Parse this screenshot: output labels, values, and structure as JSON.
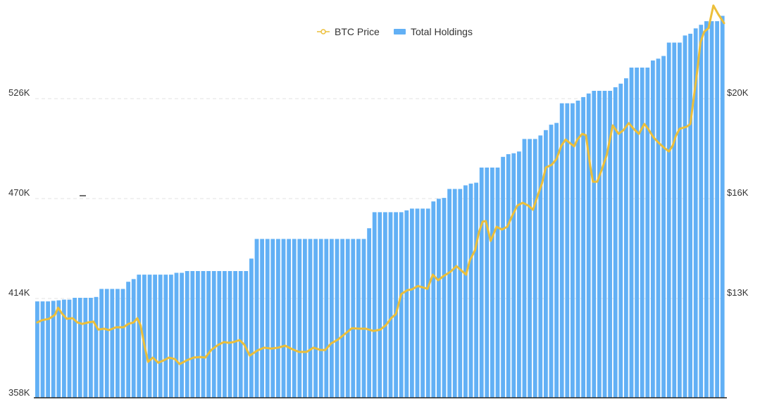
{
  "chart_data": {
    "type": "bar+line",
    "title": "",
    "legend": {
      "placement": "top-center",
      "items": [
        {
          "name": "BTC Price",
          "kind": "line",
          "color": "#ecbf3a"
        },
        {
          "name": "Total Holdings",
          "kind": "bar",
          "color": "#62b0f5"
        }
      ]
    },
    "y_left": {
      "label": "",
      "range": [
        358,
        580
      ],
      "unit": "K",
      "ticks": [
        358,
        414,
        470,
        526
      ],
      "tick_labels": [
        "358K",
        "414K",
        "470K",
        "526K"
      ]
    },
    "y_right": {
      "label": "",
      "range_k_usd": [
        9.4,
        23.2
      ],
      "tick_labels": [
        "$13K",
        "$16K",
        "$20K"
      ]
    },
    "grid": "horizontal-dashed",
    "series": [
      {
        "name": "Total Holdings",
        "type": "bar",
        "unit": "thousand",
        "values": [
          412,
          412,
          412,
          412.3,
          412.6,
          413,
          413,
          414,
          414,
          414,
          414,
          414.5,
          419,
          419,
          419,
          419,
          419,
          423,
          424.5,
          427,
          427,
          427,
          427,
          427,
          427,
          427,
          428,
          428,
          429,
          429,
          429,
          429,
          429,
          429,
          429,
          429,
          429,
          429,
          429,
          429,
          436,
          447,
          447,
          447,
          447,
          447,
          447,
          447,
          447,
          447,
          447,
          447,
          447,
          447,
          447,
          447,
          447,
          447,
          447,
          447,
          447,
          447,
          453,
          462,
          462,
          462,
          462,
          462,
          462,
          463,
          464,
          464,
          464,
          464,
          468,
          469.5,
          470,
          475,
          475,
          475,
          477,
          478,
          478.5,
          487,
          487,
          487,
          487,
          493,
          494.5,
          495,
          496,
          503,
          503,
          503,
          505,
          508,
          511,
          512,
          523,
          523,
          523,
          524.5,
          526.5,
          528.5,
          530,
          530,
          530,
          530,
          532,
          534,
          537,
          543,
          543,
          543,
          543,
          547,
          548,
          549.5,
          557,
          557,
          557,
          561,
          562,
          565,
          567,
          569,
          569,
          569,
          572
        ]
      },
      {
        "name": "BTC Price",
        "type": "line",
        "unit": "thousand USD",
        "points": [
          [
            0,
            11.86
          ],
          [
            0.9,
            11.94
          ],
          [
            2.2,
            11.99
          ],
          [
            3.3,
            12.13
          ],
          [
            3.9,
            12.38
          ],
          [
            4.6,
            12.18
          ],
          [
            5.5,
            11.99
          ],
          [
            6.6,
            12.01
          ],
          [
            7.5,
            11.86
          ],
          [
            8.4,
            11.81
          ],
          [
            9.5,
            11.86
          ],
          [
            10.5,
            11.89
          ],
          [
            11.4,
            11.61
          ],
          [
            12.5,
            11.64
          ],
          [
            13.4,
            11.59
          ],
          [
            14.7,
            11.69
          ],
          [
            16.1,
            11.69
          ],
          [
            17,
            11.81
          ],
          [
            18,
            11.86
          ],
          [
            18.7,
            12.01
          ],
          [
            19.3,
            11.76
          ],
          [
            20,
            11.07
          ],
          [
            20.7,
            10.47
          ],
          [
            21.6,
            10.62
          ],
          [
            22.6,
            10.44
          ],
          [
            23.6,
            10.52
          ],
          [
            24.6,
            10.62
          ],
          [
            25.7,
            10.57
          ],
          [
            26.6,
            10.39
          ],
          [
            27.9,
            10.52
          ],
          [
            29.2,
            10.62
          ],
          [
            30.5,
            10.64
          ],
          [
            31.4,
            10.62
          ],
          [
            32.5,
            10.89
          ],
          [
            33.8,
            11.07
          ],
          [
            34.9,
            11.17
          ],
          [
            35.8,
            11.14
          ],
          [
            36.7,
            11.17
          ],
          [
            37.8,
            11.24
          ],
          [
            38.7,
            11.07
          ],
          [
            39.7,
            10.69
          ],
          [
            41.1,
            10.87
          ],
          [
            42.4,
            10.97
          ],
          [
            43.7,
            10.94
          ],
          [
            45,
            10.97
          ],
          [
            46.3,
            11.04
          ],
          [
            47.6,
            10.92
          ],
          [
            48.9,
            10.82
          ],
          [
            50.3,
            10.82
          ],
          [
            51.6,
            10.97
          ],
          [
            52.9,
            10.89
          ],
          [
            53.8,
            10.89
          ],
          [
            54.9,
            11.12
          ],
          [
            56.2,
            11.26
          ],
          [
            57.5,
            11.46
          ],
          [
            58.8,
            11.66
          ],
          [
            60.1,
            11.64
          ],
          [
            61.4,
            11.64
          ],
          [
            62.8,
            11.56
          ],
          [
            64.1,
            11.61
          ],
          [
            65.1,
            11.76
          ],
          [
            66.1,
            12.01
          ],
          [
            67,
            12.16
          ],
          [
            68,
            12.86
          ],
          [
            69.1,
            13.0
          ],
          [
            70,
            13.03
          ],
          [
            71.1,
            13.15
          ],
          [
            72,
            13.1
          ],
          [
            72.9,
            13.05
          ],
          [
            73.9,
            13.55
          ],
          [
            74.9,
            13.35
          ],
          [
            75.9,
            13.5
          ],
          [
            77.2,
            13.65
          ],
          [
            78.3,
            13.85
          ],
          [
            79.2,
            13.7
          ],
          [
            80.1,
            13.55
          ],
          [
            80.8,
            14.05
          ],
          [
            81.8,
            14.42
          ],
          [
            82.5,
            15.04
          ],
          [
            83.2,
            15.42
          ],
          [
            83.8,
            15.44
          ],
          [
            84.7,
            14.74
          ],
          [
            85.8,
            15.24
          ],
          [
            86.8,
            15.14
          ],
          [
            87.8,
            15.24
          ],
          [
            88.8,
            15.66
          ],
          [
            89.7,
            15.99
          ],
          [
            90.7,
            16.09
          ],
          [
            91.7,
            15.99
          ],
          [
            92.6,
            15.84
          ],
          [
            93.4,
            16.29
          ],
          [
            94.3,
            16.78
          ],
          [
            95,
            17.33
          ],
          [
            96.1,
            17.43
          ],
          [
            97,
            17.63
          ],
          [
            97.9,
            18.1
          ],
          [
            98.7,
            18.32
          ],
          [
            99.6,
            18.18
          ],
          [
            100.3,
            18.08
          ],
          [
            100.9,
            18.32
          ],
          [
            101.8,
            18.52
          ],
          [
            102.5,
            18.47
          ],
          [
            103.3,
            17.38
          ],
          [
            103.8,
            16.83
          ],
          [
            104.6,
            16.83
          ],
          [
            105.5,
            17.28
          ],
          [
            106.4,
            17.78
          ],
          [
            107.5,
            18.82
          ],
          [
            108.6,
            18.52
          ],
          [
            109.5,
            18.65
          ],
          [
            110.5,
            18.9
          ],
          [
            111.4,
            18.7
          ],
          [
            112.4,
            18.52
          ],
          [
            113.4,
            18.87
          ],
          [
            114.1,
            18.7
          ],
          [
            115.1,
            18.4
          ],
          [
            116.1,
            18.2
          ],
          [
            117.1,
            18.03
          ],
          [
            118,
            17.9
          ],
          [
            118.7,
            18.1
          ],
          [
            119.3,
            18.45
          ],
          [
            120,
            18.7
          ],
          [
            121.3,
            18.77
          ],
          [
            122,
            18.87
          ],
          [
            123.3,
            20.76
          ],
          [
            123.9,
            21.76
          ],
          [
            124.6,
            22.13
          ],
          [
            125.4,
            22.25
          ],
          [
            126.3,
            23.05
          ],
          [
            127.2,
            22.75
          ],
          [
            128.3,
            22.43
          ]
        ]
      }
    ]
  }
}
